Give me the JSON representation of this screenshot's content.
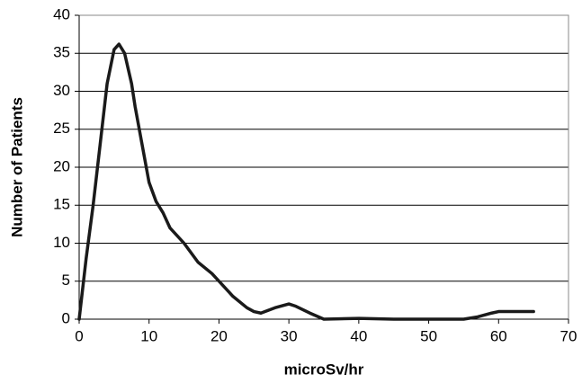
{
  "chart_data": {
    "type": "line",
    "x_label": "microSv/hr",
    "y_label": "Number of Patients",
    "x": [
      0,
      1,
      2,
      3,
      4,
      5,
      5.7,
      6.5,
      7.5,
      8,
      9,
      10,
      11,
      12,
      13,
      15,
      17,
      19,
      20,
      22,
      24,
      25,
      26,
      28,
      30,
      31,
      33,
      35,
      40,
      45,
      50,
      55,
      57,
      59,
      60,
      63,
      65
    ],
    "series": [
      {
        "name": "Patients",
        "color": "#1a1a1a",
        "values": [
          0,
          8,
          15,
          23,
          31,
          35.5,
          36.2,
          35,
          31,
          28,
          23,
          18,
          15.5,
          14,
          12,
          10,
          7.5,
          6,
          5,
          3,
          1.5,
          1,
          0.8,
          1.5,
          2,
          1.7,
          0.8,
          0,
          0.1,
          0,
          0,
          0,
          0.3,
          0.8,
          1,
          1,
          1
        ]
      }
    ],
    "xlim": [
      0,
      70
    ],
    "xticks": [
      0,
      10,
      20,
      30,
      40,
      50,
      60,
      70
    ],
    "ylim": [
      0,
      40
    ],
    "yticks": [
      0,
      5,
      10,
      15,
      20,
      25,
      30,
      35,
      40
    ],
    "grid": true
  }
}
